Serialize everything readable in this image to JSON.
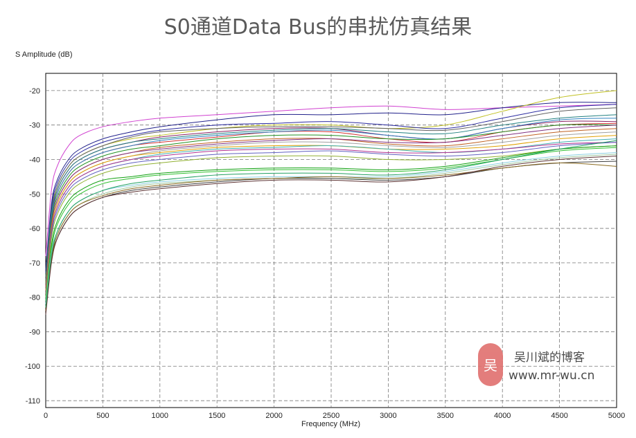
{
  "title": "S0通道Data Bus的串扰仿真结果",
  "watermark": {
    "logo_char": "吴",
    "name": "吴川斌的博客",
    "url": "www.mr-wu.cn"
  },
  "chart_data": {
    "type": "line",
    "title": "S0通道Data Bus的串扰仿真结果",
    "xlabel": "Frequency (MHz)",
    "ylabel": "S Amplitude (dB)",
    "xlim": [
      0,
      5000
    ],
    "ylim": [
      -112,
      -15
    ],
    "x_ticks": [
      "0",
      "500",
      "1000",
      "1500",
      "2000",
      "2500",
      "3000",
      "3500",
      "4000",
      "4500",
      "5000"
    ],
    "y_ticks": [
      "-20",
      "-30",
      "-40",
      "-50",
      "-60",
      "-70",
      "-80",
      "-90",
      "-100",
      "-110"
    ],
    "x_tick_values": [
      0,
      500,
      1000,
      1500,
      2000,
      2500,
      3000,
      3500,
      4000,
      4500,
      5000
    ],
    "y_tick_values": [
      -20,
      -30,
      -40,
      -50,
      -60,
      -70,
      -80,
      -90,
      -100,
      -110
    ],
    "grid": true,
    "x": [
      0,
      50,
      100,
      200,
      300,
      500,
      750,
      1000,
      1500,
      2000,
      2500,
      3000,
      3500,
      4000,
      4500,
      5000
    ],
    "series": [
      {
        "color": "#d040d0",
        "values": [
          -68,
          -49,
          -42,
          -36,
          -33,
          -30.5,
          -29,
          -28,
          -27,
          -26,
          -25,
          -24.5,
          -25.5,
          -25,
          -24.5,
          -24
        ]
      },
      {
        "color": "#20208a",
        "values": [
          -72,
          -53,
          -46,
          -40,
          -37,
          -34,
          -32,
          -30.5,
          -28.5,
          -27,
          -27,
          -26.5,
          -27,
          -25,
          -23.5,
          -23.5
        ]
      },
      {
        "color": "#c0c020",
        "values": [
          -74,
          -56,
          -48,
          -42,
          -39,
          -36,
          -34,
          -33,
          -31,
          -30,
          -30,
          -31,
          -30,
          -26,
          -22,
          -20
        ]
      },
      {
        "color": "#2a2aa0",
        "values": [
          -73,
          -54,
          -47,
          -41,
          -38,
          -35,
          -33,
          -31.5,
          -30,
          -29.5,
          -29,
          -30,
          -31,
          -28,
          -25,
          -24
        ]
      },
      {
        "color": "#606060",
        "values": [
          -74,
          -55,
          -48,
          -42,
          -39,
          -36,
          -33.5,
          -32,
          -31,
          -30.5,
          -30.5,
          -31,
          -31.5,
          -29,
          -26,
          -25
        ]
      },
      {
        "color": "#8a2060",
        "values": [
          -75,
          -57,
          -49,
          -43,
          -40,
          -37,
          -35,
          -33.5,
          -32,
          -31,
          -31,
          -33,
          -34,
          -31,
          -29,
          -29
        ]
      },
      {
        "color": "#208080",
        "values": [
          -75,
          -56,
          -49,
          -43,
          -40,
          -37,
          -35,
          -34,
          -32.5,
          -31.5,
          -31,
          -32,
          -32.5,
          -30,
          -28,
          -27
        ]
      },
      {
        "color": "#d03030",
        "values": [
          -76,
          -58,
          -50,
          -44,
          -41,
          -38,
          -36,
          -35,
          -33.5,
          -32,
          -32,
          -34,
          -35,
          -32,
          -30,
          -29.5
        ]
      },
      {
        "color": "#3080c0",
        "values": [
          -76,
          -57,
          -50,
          -44,
          -41,
          -38,
          -36,
          -34.5,
          -33,
          -32,
          -31.5,
          -33,
          -34,
          -31,
          -28.5,
          -28
        ]
      },
      {
        "color": "#209020",
        "values": [
          -76,
          -58,
          -51,
          -45,
          -42,
          -39,
          -37,
          -36,
          -34,
          -33,
          -33,
          -34,
          -34,
          -32,
          -30,
          -30
        ]
      },
      {
        "color": "#c06020",
        "values": [
          -77,
          -59,
          -52,
          -46,
          -43,
          -40,
          -38,
          -36.5,
          -35,
          -34,
          -34,
          -35.5,
          -36,
          -34,
          -32,
          -31
        ]
      },
      {
        "color": "#803080",
        "values": [
          -77,
          -59,
          -52,
          -46,
          -43,
          -40,
          -38,
          -37,
          -35.5,
          -34.5,
          -34,
          -35,
          -35,
          -33,
          -31,
          -30
        ]
      },
      {
        "color": "#a0a0a0",
        "values": [
          -78,
          -60,
          -53,
          -47,
          -44,
          -41,
          -39,
          -37.5,
          -36,
          -35,
          -35,
          -36,
          -36.5,
          -35,
          -33,
          -32
        ]
      },
      {
        "color": "#e0a000",
        "values": [
          -78,
          -60,
          -53,
          -47,
          -44,
          -41,
          -39,
          -38,
          -36.5,
          -36,
          -36,
          -37,
          -37,
          -36,
          -34,
          -33
        ]
      },
      {
        "color": "#40b0b0",
        "values": [
          -79,
          -61,
          -54,
          -48,
          -45,
          -42,
          -40,
          -38.5,
          -37,
          -36.5,
          -36,
          -37,
          -38,
          -37,
          -35,
          -34
        ]
      },
      {
        "color": "#b03090",
        "values": [
          -79,
          -61,
          -54,
          -48,
          -45,
          -42,
          -40,
          -39,
          -37.5,
          -37,
          -37,
          -38,
          -38,
          -37,
          -35.5,
          -35
        ]
      },
      {
        "color": "#6060c0",
        "values": [
          -80,
          -62,
          -55,
          -49,
          -46,
          -43,
          -41,
          -40,
          -38.5,
          -38,
          -37.5,
          -38.5,
          -39,
          -38,
          -36,
          -35
        ]
      },
      {
        "color": "#90b030",
        "values": [
          -80,
          -63,
          -56,
          -50,
          -47,
          -44,
          -42,
          -41,
          -39.5,
          -39,
          -39,
          -40,
          -40,
          -39,
          -37,
          -36
        ]
      },
      {
        "color": "#10a010",
        "values": [
          -81,
          -65,
          -58,
          -52,
          -49,
          -46,
          -45,
          -44,
          -43,
          -42.5,
          -42.5,
          -43,
          -42,
          -39.5,
          -37,
          -36
        ]
      },
      {
        "color": "#30c030",
        "values": [
          -81,
          -66,
          -59,
          -53,
          -50,
          -47,
          -45.5,
          -44.5,
          -43.5,
          -43,
          -43,
          -43.5,
          -42.5,
          -40,
          -37.5,
          -36.5
        ]
      },
      {
        "color": "#8ad0e0",
        "values": [
          -82,
          -67,
          -61,
          -55,
          -52,
          -49,
          -47.5,
          -46.5,
          -45.5,
          -45,
          -45,
          -45,
          -43.5,
          -41,
          -39,
          -38
        ]
      },
      {
        "color": "#a0c8a0",
        "values": [
          -83,
          -68,
          -62,
          -56,
          -53,
          -50,
          -48,
          -47,
          -46,
          -45.5,
          -45.5,
          -45.5,
          -44,
          -41.5,
          -39.5,
          -38.5
        ]
      },
      {
        "color": "#404040",
        "values": [
          -84,
          -69,
          -63,
          -57,
          -54,
          -51,
          -49,
          -48,
          -46.5,
          -45.5,
          -45.5,
          -46,
          -45,
          -42.5,
          -41,
          -40.5
        ]
      },
      {
        "color": "#8a6a20",
        "values": [
          -84,
          -69,
          -62,
          -56,
          -53,
          -50.5,
          -48.5,
          -47.5,
          -46,
          -45.5,
          -45,
          -45.5,
          -44.5,
          -42.5,
          -41,
          -42
        ]
      },
      {
        "color": "#5a3030",
        "values": [
          -85,
          -70,
          -63,
          -57,
          -54,
          -51,
          -49.5,
          -48.5,
          -47,
          -46,
          -46,
          -46.5,
          -45,
          -42,
          -40,
          -39
        ]
      },
      {
        "color": "#20a060",
        "values": [
          -83,
          -68,
          -61,
          -55,
          -52,
          -49,
          -47,
          -46,
          -44.5,
          -44,
          -44,
          -44.5,
          -43,
          -40,
          -37,
          -34.5
        ]
      }
    ]
  }
}
